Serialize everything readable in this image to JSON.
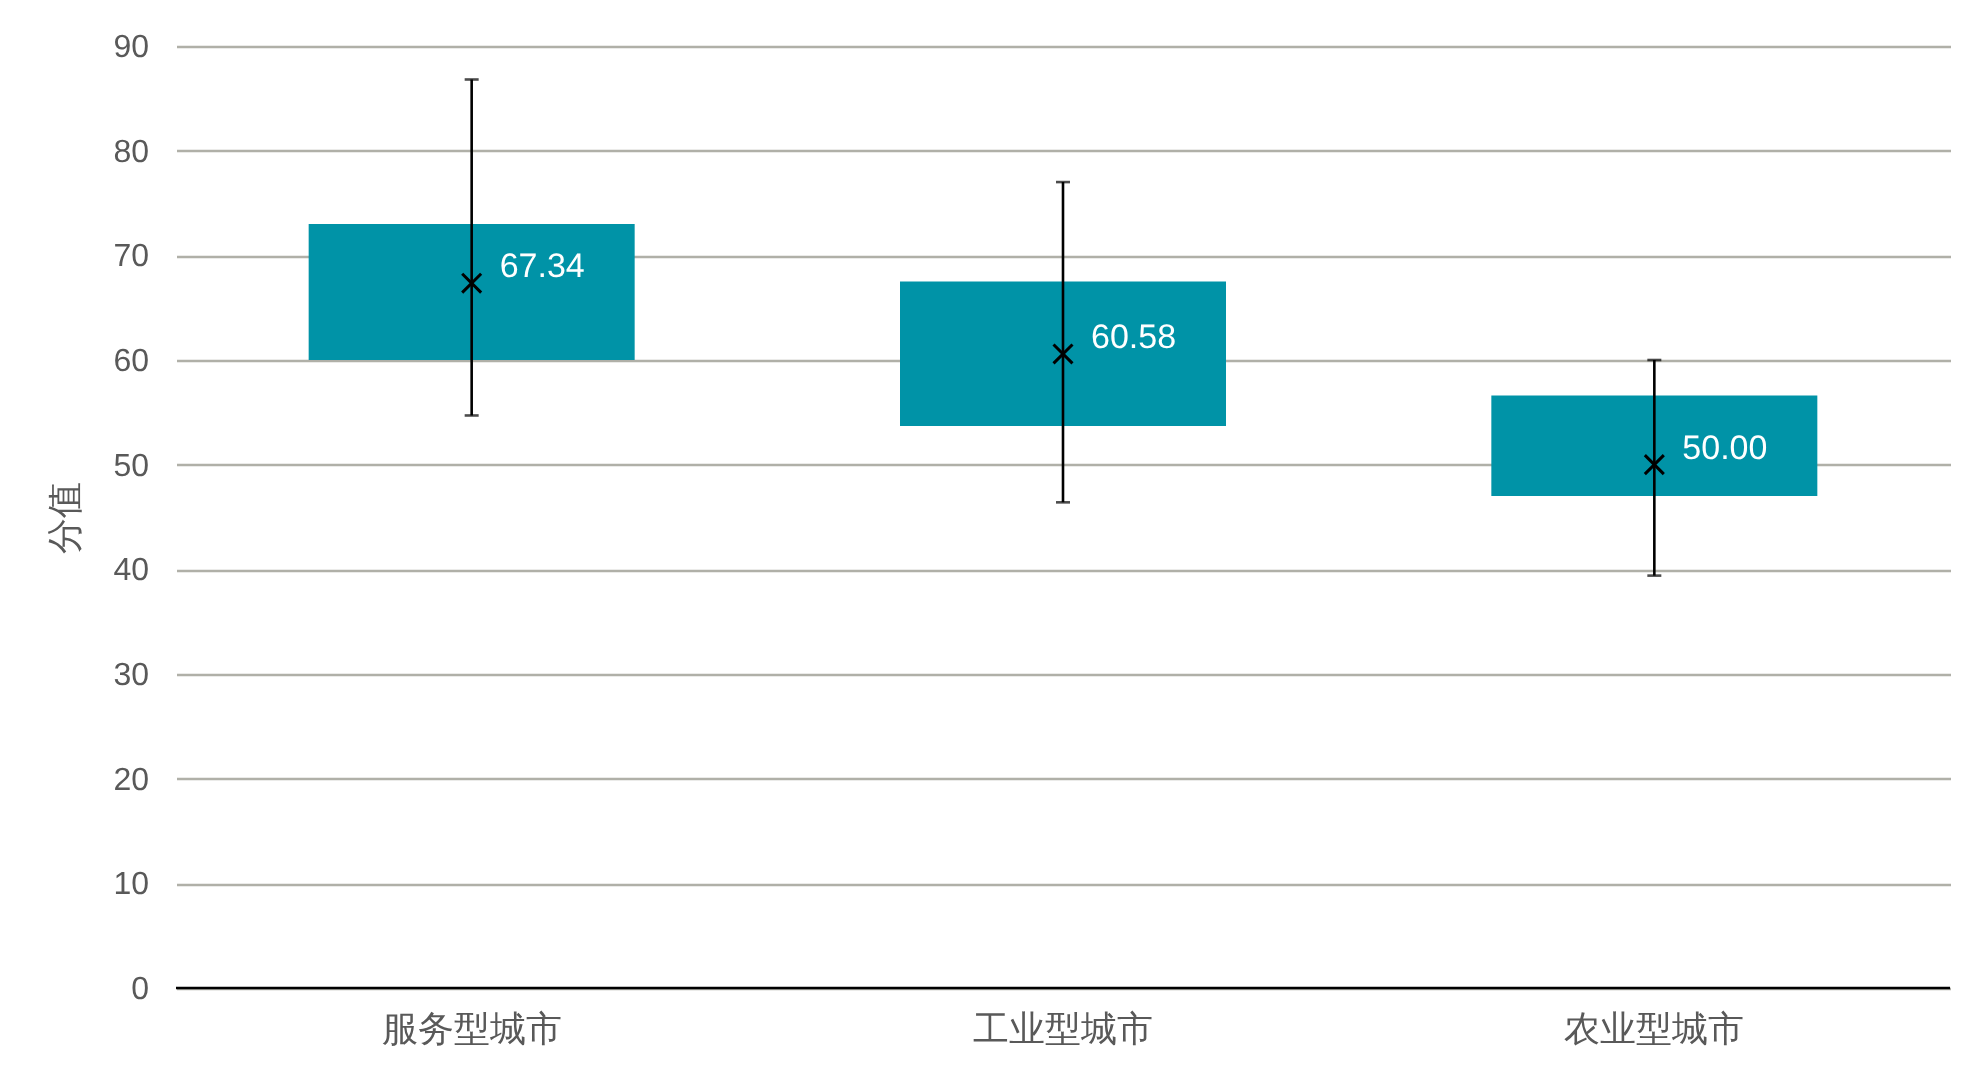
{
  "chart_data": {
    "type": "bar",
    "ylabel": "分值",
    "categories": [
      "服务型城市",
      "工业型城市",
      "农业型城市"
    ],
    "ylim": [
      0,
      90
    ],
    "yticks": [
      0,
      10,
      20,
      30,
      40,
      50,
      60,
      70,
      80,
      90
    ],
    "grid": "y",
    "series": [
      {
        "color": "#0093a7",
        "base": [
          60.0,
          53.7,
          47.0
        ],
        "values": [
          13.0,
          13.8,
          9.6
        ]
      },
      {
        "type": "scatter",
        "color": "#000000",
        "marker": "cross",
        "values": [
          67.34,
          60.58,
          50.0
        ],
        "errors": [
          [
            54.7,
            86.8
          ],
          [
            46.4,
            77.0
          ],
          [
            39.4,
            60.0
          ]
        ],
        "value_labels": [
          "67.34",
          "60.58",
          "50.00"
        ]
      }
    ]
  }
}
